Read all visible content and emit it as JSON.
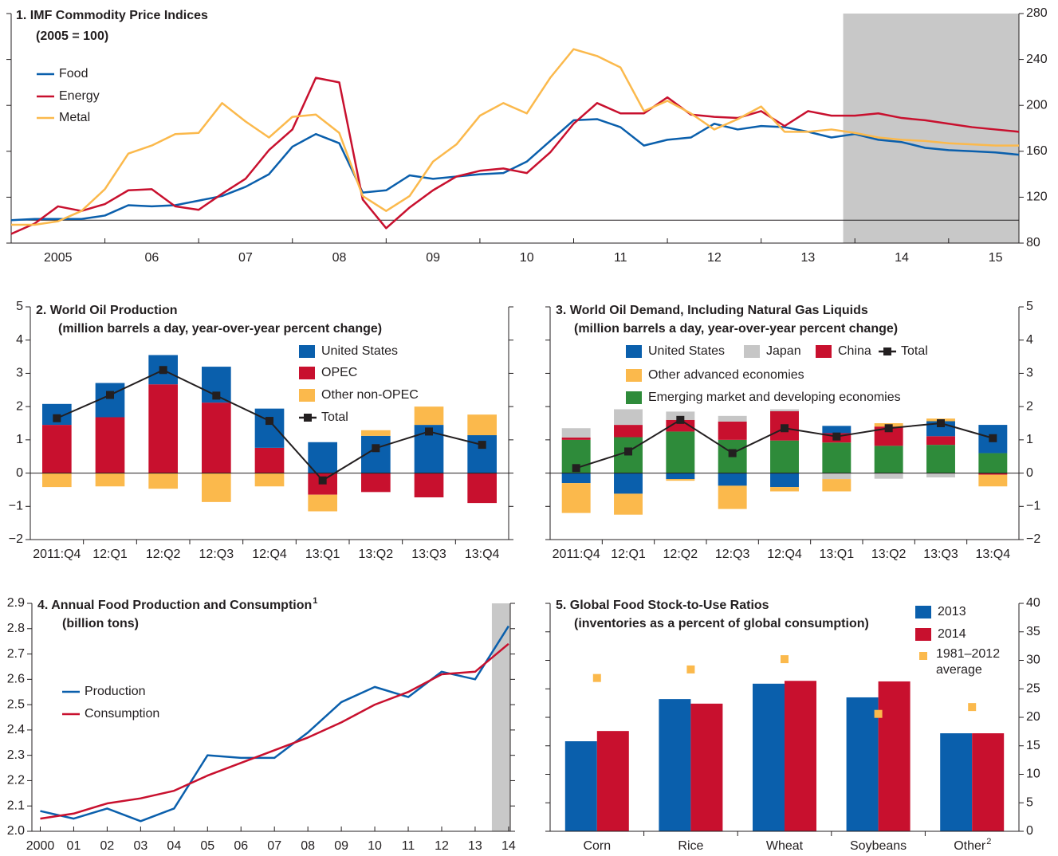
{
  "chart_data": [
    {
      "type": "line",
      "title": "1. IMF Commodity Price Indices",
      "subtitle": "(2005 = 100)",
      "x": [
        2005,
        2005.25,
        2005.5,
        2005.75,
        2006,
        2006.25,
        2006.5,
        2006.75,
        2007,
        2007.25,
        2007.5,
        2007.75,
        2008,
        2008.25,
        2008.5,
        2008.75,
        2009,
        2009.25,
        2009.5,
        2009.75,
        2010,
        2010.25,
        2010.5,
        2010.75,
        2011,
        2011.25,
        2011.5,
        2011.75,
        2012,
        2012.25,
        2012.5,
        2012.75,
        2013,
        2013.25,
        2013.5,
        2013.75,
        2014,
        2014.25,
        2014.5,
        2014.75,
        2015,
        2015.25,
        2015.5,
        2015.75
      ],
      "xlim": [
        2005,
        2015.75
      ],
      "xticks": [
        {
          "value": 2005.5,
          "label": "2005"
        },
        {
          "value": 2006.5,
          "label": "06"
        },
        {
          "value": 2007.5,
          "label": "07"
        },
        {
          "value": 2008.5,
          "label": "08"
        },
        {
          "value": 2009.5,
          "label": "09"
        },
        {
          "value": 2010.5,
          "label": "10"
        },
        {
          "value": 2011.5,
          "label": "11"
        },
        {
          "value": 2012.5,
          "label": "12"
        },
        {
          "value": 2013.5,
          "label": "13"
        },
        {
          "value": 2014.5,
          "label": "14"
        },
        {
          "value": 2015.5,
          "label": "15"
        }
      ],
      "ylim": [
        80,
        280
      ],
      "yticks": [
        80,
        120,
        160,
        200,
        240,
        280
      ],
      "ref_line": 100,
      "shade_from": 2013.875,
      "series": [
        {
          "name": "Food",
          "color": "#0a5fac",
          "values": [
            100,
            101,
            101,
            101,
            104,
            113,
            112,
            113,
            117,
            121,
            129,
            140,
            164,
            175,
            167,
            124,
            126,
            139,
            136,
            138,
            140,
            141,
            151,
            169,
            187,
            188,
            181,
            165,
            170,
            172,
            184,
            179,
            182,
            181,
            177,
            172,
            175,
            170,
            168,
            163,
            161,
            160,
            159,
            157
          ]
        },
        {
          "name": "Energy",
          "color": "#c8102e",
          "values": [
            88,
            97,
            112,
            108,
            114,
            126,
            127,
            112,
            109,
            123,
            136,
            161,
            179,
            224,
            220,
            118,
            93,
            111,
            126,
            138,
            143,
            145,
            141,
            159,
            184,
            202,
            193,
            193,
            207,
            192,
            190,
            189,
            195,
            182,
            195,
            191,
            191,
            193,
            189,
            187,
            184,
            181,
            179,
            177
          ]
        },
        {
          "name": "Metal",
          "color": "#fbb94c",
          "values": [
            96,
            96,
            99,
            108,
            127,
            158,
            165,
            175,
            176,
            202,
            186,
            172,
            190,
            192,
            176,
            121,
            108,
            121,
            151,
            166,
            191,
            202,
            193,
            224,
            249,
            243,
            233,
            195,
            204,
            193,
            179,
            188,
            199,
            177,
            177,
            179,
            176,
            172,
            170,
            169,
            167,
            166,
            165,
            165
          ]
        }
      ]
    },
    {
      "type": "bar",
      "stacked": true,
      "title": "2. World Oil Production",
      "subtitle": "(million barrels a day, year-over-year percent change)",
      "categories": [
        "2011:Q4",
        "12:Q1",
        "12:Q2",
        "12:Q3",
        "12:Q4",
        "13:Q1",
        "13:Q2",
        "13:Q3",
        "13:Q4"
      ],
      "ylim": [
        -2,
        5
      ],
      "yticks": [
        {
          "value": -2,
          "label": "−2"
        },
        {
          "value": -1,
          "label": "−1"
        },
        0,
        1,
        2,
        3,
        4,
        5
      ],
      "series": [
        {
          "name": "United States",
          "color": "#0a5fac",
          "values": [
            0.63,
            1.03,
            0.88,
            1.08,
            1.18,
            0.93,
            1.12,
            1.45,
            1.14
          ]
        },
        {
          "name": "OPEC",
          "color": "#c8102e",
          "values": [
            1.45,
            1.68,
            2.67,
            2.12,
            0.76,
            -0.65,
            -0.57,
            -0.73,
            -0.9
          ]
        },
        {
          "name": "Other non-OPEC",
          "color": "#fbb94c",
          "values": [
            -0.42,
            -0.4,
            -0.47,
            -0.87,
            -0.4,
            -0.5,
            0.17,
            0.55,
            0.62
          ]
        },
        {
          "name": "Total",
          "type": "line",
          "marker": "square",
          "color": "#231f20",
          "values": [
            1.65,
            2.35,
            3.1,
            2.33,
            1.57,
            -0.22,
            0.75,
            1.25,
            0.85
          ]
        }
      ]
    },
    {
      "type": "bar",
      "stacked": true,
      "title": "3. World Oil Demand, Including Natural Gas Liquids",
      "subtitle": "(million barrels a day, year-over-year percent change)",
      "categories": [
        "2011:Q4",
        "12:Q1",
        "12:Q2",
        "12:Q3",
        "12:Q4",
        "13:Q1",
        "13:Q2",
        "13:Q3",
        "13:Q4"
      ],
      "ylim": [
        -2,
        5
      ],
      "yticks": [
        {
          "value": -2,
          "label": "−2"
        },
        {
          "value": -1,
          "label": "−1"
        },
        0,
        1,
        2,
        3,
        4,
        5
      ],
      "series": [
        {
          "name": "United States",
          "color": "#0a5fac",
          "values": [
            -0.3,
            -0.62,
            -0.18,
            -0.38,
            -0.42,
            0.22,
            0,
            0.45,
            0.85
          ]
        },
        {
          "name": "Japan",
          "color": "#c6c6c6",
          "values": [
            0.28,
            0.47,
            0.25,
            0.17,
            0.06,
            -0.18,
            -0.17,
            -0.13,
            0
          ]
        },
        {
          "name": "China",
          "color": "#c8102e",
          "values": [
            0.07,
            0.37,
            0.35,
            0.55,
            0.88,
            0.28,
            0.58,
            0.26,
            -0.05
          ]
        },
        {
          "name": "Total",
          "type": "line",
          "marker": "square",
          "color": "#231f20",
          "values": [
            0.15,
            0.65,
            1.6,
            0.6,
            1.35,
            1.1,
            1.35,
            1.5,
            1.05
          ]
        },
        {
          "name": "Other advanced economies",
          "color": "#fbb94c",
          "values": [
            -0.9,
            -0.63,
            -0.05,
            -0.7,
            -0.13,
            -0.37,
            0.1,
            0.08,
            -0.35
          ]
        },
        {
          "name": "Emerging market and developing economies",
          "color": "#2e8b3a",
          "values": [
            1.0,
            1.08,
            1.25,
            1.0,
            0.98,
            0.92,
            0.82,
            0.85,
            0.6
          ]
        }
      ]
    },
    {
      "type": "line",
      "title": "4. Annual Food Production and Consumption",
      "title_footnote": "1",
      "subtitle": "(billion tons)",
      "x": [
        2000,
        2001,
        2002,
        2003,
        2004,
        2005,
        2006,
        2007,
        2008,
        2009,
        2010,
        2011,
        2012,
        2013,
        2014
      ],
      "xlim": [
        1999.75,
        2014.05
      ],
      "xticks": [
        {
          "value": 2000,
          "label": "2000"
        },
        {
          "value": 2001,
          "label": "01"
        },
        {
          "value": 2002,
          "label": "02"
        },
        {
          "value": 2003,
          "label": "03"
        },
        {
          "value": 2004,
          "label": "04"
        },
        {
          "value": 2005,
          "label": "05"
        },
        {
          "value": 2006,
          "label": "06"
        },
        {
          "value": 2007,
          "label": "07"
        },
        {
          "value": 2008,
          "label": "08"
        },
        {
          "value": 2009,
          "label": "09"
        },
        {
          "value": 2010,
          "label": "10"
        },
        {
          "value": 2011,
          "label": "11"
        },
        {
          "value": 2012,
          "label": "12"
        },
        {
          "value": 2013,
          "label": "13"
        },
        {
          "value": 2014,
          "label": "14"
        }
      ],
      "ylim": [
        2.0,
        2.9
      ],
      "yticks": [
        {
          "value": 2,
          "label": "2.0"
        },
        2.1,
        2.2,
        2.3,
        2.4,
        2.5,
        2.6,
        2.7,
        2.8,
        2.9
      ],
      "shade_from": 2013.5,
      "series": [
        {
          "name": "Production",
          "color": "#0a5fac",
          "values": [
            2.08,
            2.05,
            2.09,
            2.04,
            2.09,
            2.3,
            2.29,
            2.29,
            2.39,
            2.51,
            2.57,
            2.53,
            2.63,
            2.6,
            2.81
          ]
        },
        {
          "name": "Consumption",
          "color": "#c8102e",
          "values": [
            2.05,
            2.07,
            2.11,
            2.13,
            2.16,
            2.22,
            2.27,
            2.32,
            2.37,
            2.43,
            2.5,
            2.55,
            2.62,
            2.63,
            2.74
          ]
        }
      ]
    },
    {
      "type": "bar",
      "title": "5. Global Food Stock-to-Use Ratios",
      "subtitle": "(inventories as a percent of global consumption)",
      "categories": [
        "Corn",
        "Rice",
        "Wheat",
        "Soybeans",
        "Other"
      ],
      "category_footnotes": [
        null,
        null,
        null,
        null,
        "2"
      ],
      "ylim": [
        0,
        40
      ],
      "yticks": [
        0,
        5,
        10,
        15,
        20,
        25,
        30,
        35,
        40
      ],
      "series": [
        {
          "name": "2013",
          "color": "#0a5fac",
          "values": [
            15.8,
            23.2,
            25.9,
            23.5,
            17.2
          ]
        },
        {
          "name": "2014",
          "color": "#c8102e",
          "values": [
            17.6,
            22.4,
            26.4,
            26.3,
            17.2
          ]
        },
        {
          "name": "1981–2012 average",
          "type": "point",
          "color": "#fbb94c",
          "values": [
            26.9,
            28.4,
            30.2,
            20.6,
            21.8
          ]
        }
      ]
    }
  ]
}
